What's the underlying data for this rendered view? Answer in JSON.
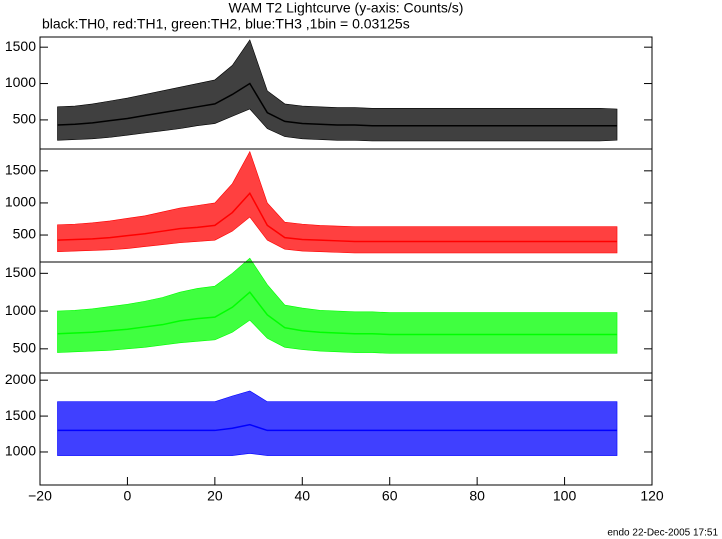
{
  "chart_data": [
    {
      "type": "line",
      "title": "WAM T2 Lightcurve (y-axis: Counts/s)",
      "subtitle": "black:TH0, red:TH1, green:TH2, blue:TH3 ,1bin = 0.03125s",
      "annotation": "endo 22-Dec-2005 17:51",
      "color": "#000000",
      "x": [
        -16,
        -12,
        -8,
        -4,
        0,
        4,
        8,
        12,
        16,
        20,
        24,
        28,
        32,
        36,
        40,
        44,
        48,
        52,
        56,
        60,
        64,
        68,
        72,
        76,
        80,
        84,
        88,
        92,
        96,
        100,
        104,
        108,
        112
      ],
      "values": [
        430,
        440,
        460,
        490,
        520,
        560,
        600,
        640,
        680,
        720,
        850,
        1000,
        600,
        480,
        450,
        440,
        430,
        430,
        420,
        420,
        420,
        420,
        420,
        420,
        420,
        420,
        420,
        420,
        420,
        420,
        420,
        420,
        420
      ],
      "lower": [
        220,
        230,
        240,
        260,
        290,
        320,
        350,
        380,
        420,
        450,
        550,
        650,
        380,
        270,
        240,
        230,
        220,
        220,
        210,
        210,
        210,
        210,
        210,
        210,
        210,
        210,
        210,
        210,
        210,
        210,
        210,
        210,
        220
      ],
      "upper": [
        680,
        690,
        720,
        760,
        800,
        850,
        900,
        950,
        1000,
        1050,
        1250,
        1600,
        900,
        720,
        690,
        680,
        670,
        670,
        660,
        660,
        660,
        660,
        660,
        660,
        660,
        660,
        660,
        660,
        660,
        660,
        660,
        660,
        650
      ],
      "xlim": [
        -20,
        120
      ],
      "ylim": [
        100,
        1640
      ],
      "yticks": [
        500,
        1000,
        1500
      ]
    },
    {
      "type": "line",
      "color": "#ff0000",
      "x": [
        -16,
        -12,
        -8,
        -4,
        0,
        4,
        8,
        12,
        16,
        20,
        24,
        28,
        32,
        36,
        40,
        44,
        48,
        52,
        56,
        60,
        64,
        68,
        72,
        76,
        80,
        84,
        88,
        92,
        96,
        100,
        104,
        108,
        112
      ],
      "values": [
        420,
        430,
        440,
        460,
        490,
        520,
        560,
        600,
        620,
        650,
        850,
        1150,
        650,
        460,
        430,
        420,
        410,
        400,
        400,
        400,
        400,
        400,
        400,
        400,
        400,
        400,
        400,
        400,
        400,
        400,
        400,
        400,
        400
      ],
      "lower": [
        240,
        250,
        260,
        270,
        290,
        320,
        350,
        380,
        400,
        420,
        560,
        780,
        420,
        280,
        250,
        240,
        230,
        220,
        220,
        220,
        220,
        220,
        220,
        220,
        220,
        220,
        220,
        220,
        220,
        220,
        220,
        220,
        220
      ],
      "upper": [
        660,
        670,
        690,
        720,
        760,
        800,
        860,
        920,
        960,
        1000,
        1300,
        1800,
        1000,
        700,
        670,
        650,
        640,
        630,
        630,
        630,
        630,
        630,
        630,
        630,
        630,
        630,
        630,
        630,
        630,
        630,
        630,
        630,
        630
      ],
      "xlim": [
        -20,
        120
      ],
      "ylim": [
        80,
        1840
      ],
      "yticks": [
        500,
        1000,
        1500
      ]
    },
    {
      "type": "line",
      "color": "#00ff00",
      "x": [
        -16,
        -12,
        -8,
        -4,
        0,
        4,
        8,
        12,
        16,
        20,
        24,
        28,
        32,
        36,
        40,
        44,
        48,
        52,
        56,
        60,
        64,
        68,
        72,
        76,
        80,
        84,
        88,
        92,
        96,
        100,
        104,
        108,
        112
      ],
      "values": [
        700,
        710,
        720,
        740,
        760,
        790,
        820,
        870,
        900,
        920,
        1050,
        1250,
        950,
        780,
        740,
        720,
        710,
        700,
        700,
        690,
        690,
        690,
        690,
        690,
        690,
        690,
        690,
        690,
        690,
        690,
        690,
        690,
        690
      ],
      "lower": [
        450,
        460,
        470,
        480,
        500,
        520,
        550,
        580,
        600,
        620,
        720,
        880,
        640,
        520,
        490,
        470,
        460,
        450,
        450,
        440,
        440,
        440,
        440,
        440,
        440,
        440,
        440,
        440,
        440,
        440,
        440,
        440,
        440
      ],
      "upper": [
        1000,
        1010,
        1030,
        1060,
        1090,
        1130,
        1180,
        1250,
        1300,
        1330,
        1500,
        1700,
        1350,
        1080,
        1040,
        1010,
        1000,
        990,
        990,
        980,
        980,
        980,
        980,
        980,
        980,
        980,
        980,
        980,
        980,
        980,
        980,
        980,
        980
      ],
      "xlim": [
        -20,
        120
      ],
      "ylim": [
        180,
        1650
      ],
      "yticks": [
        500,
        1000,
        1500
      ]
    },
    {
      "type": "line",
      "color": "#0000ff",
      "x": [
        -16,
        -12,
        -8,
        -4,
        0,
        4,
        8,
        12,
        16,
        20,
        24,
        28,
        32,
        36,
        40,
        44,
        48,
        52,
        56,
        60,
        64,
        68,
        72,
        76,
        80,
        84,
        88,
        92,
        96,
        100,
        104,
        108,
        112
      ],
      "values": [
        1300,
        1300,
        1300,
        1300,
        1300,
        1300,
        1300,
        1300,
        1300,
        1300,
        1330,
        1380,
        1300,
        1300,
        1300,
        1300,
        1300,
        1300,
        1300,
        1300,
        1300,
        1300,
        1300,
        1300,
        1300,
        1300,
        1300,
        1300,
        1300,
        1300,
        1300,
        1300,
        1300
      ],
      "lower": [
        950,
        950,
        950,
        950,
        950,
        950,
        950,
        950,
        950,
        950,
        950,
        980,
        950,
        950,
        950,
        950,
        950,
        950,
        950,
        950,
        950,
        950,
        950,
        950,
        950,
        950,
        950,
        950,
        950,
        950,
        950,
        950,
        950
      ],
      "upper": [
        1700,
        1700,
        1700,
        1700,
        1700,
        1700,
        1700,
        1700,
        1700,
        1700,
        1780,
        1850,
        1700,
        1700,
        1700,
        1700,
        1700,
        1700,
        1700,
        1700,
        1700,
        1700,
        1700,
        1700,
        1700,
        1700,
        1700,
        1700,
        1700,
        1700,
        1700,
        1700,
        1700
      ],
      "xlim": [
        -20,
        120
      ],
      "ylim": [
        540,
        2100
      ],
      "yticks": [
        1000,
        1500,
        2000
      ],
      "xticks": [
        {
          "value": -20,
          "label": "−20"
        },
        0,
        20,
        40,
        60,
        80,
        100,
        120
      ]
    }
  ]
}
